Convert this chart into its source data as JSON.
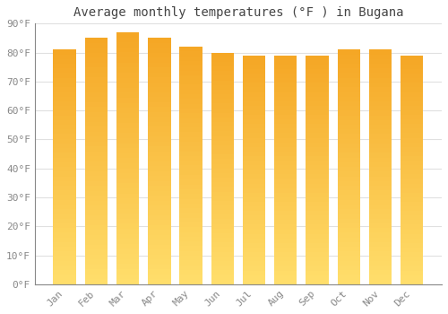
{
  "title": "Average monthly temperatures (°F ) in Bugana",
  "months": [
    "Jan",
    "Feb",
    "Mar",
    "Apr",
    "May",
    "Jun",
    "Jul",
    "Aug",
    "Sep",
    "Oct",
    "Nov",
    "Dec"
  ],
  "values": [
    81,
    85,
    87,
    85,
    82,
    80,
    79,
    79,
    79,
    81,
    81,
    79
  ],
  "bar_color_top": "#F5A623",
  "bar_color_mid": "#F5B942",
  "bar_color_bottom": "#FFD966",
  "background_color": "#FFFFFF",
  "grid_color": "#E0E0E0",
  "spine_color": "#888888",
  "tick_color": "#888888",
  "title_color": "#444444",
  "ylim": [
    0,
    90
  ],
  "ytick_step": 10,
  "title_fontsize": 10,
  "tick_fontsize": 8,
  "bar_width": 0.72
}
